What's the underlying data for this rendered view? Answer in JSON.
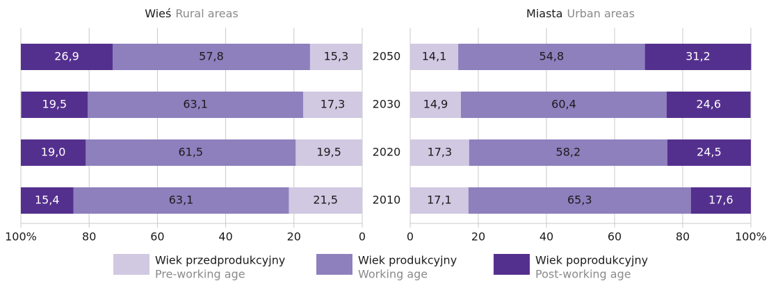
{
  "chart_data": [
    {
      "type": "stacked-bar-horizontal",
      "title": "Wieś",
      "subtitle": "Rural areas",
      "xlim": [
        100,
        0
      ],
      "xticks": [
        {
          "value": 100,
          "label": "100%"
        },
        80,
        60,
        40,
        20,
        0
      ],
      "grid": true,
      "series": [
        {
          "name": "Wiek przedprodukcyjny",
          "name_en": "Pre-working age",
          "color": "#d1c8e2",
          "values": [
            15.3,
            17.3,
            19.5,
            21.5
          ],
          "value_labels": [
            "15,3",
            "17,3",
            "19,5",
            "21,5"
          ]
        },
        {
          "name": "Wiek produkcyjny",
          "name_en": "Working age",
          "color": "#8e7fbd",
          "values": [
            57.8,
            63.1,
            61.5,
            63.1
          ],
          "value_labels": [
            "57,8",
            "63,1",
            "61,5",
            "63,1"
          ]
        },
        {
          "name": "Wiek poprodukcyjny",
          "name_en": "Post-working age",
          "color": "#54308e",
          "values": [
            26.9,
            19.5,
            19.0,
            15.4
          ],
          "value_labels": [
            "26,9",
            "19,5",
            "19,0",
            "15,4"
          ]
        }
      ]
    },
    {
      "type": "stacked-bar-horizontal",
      "title": "Miasta",
      "subtitle": "Urban areas",
      "categories": [
        "2050",
        "2030",
        "2020",
        "2010"
      ],
      "xlim": [
        0,
        100
      ],
      "xticks": [
        0,
        20,
        40,
        60,
        80,
        {
          "value": 100,
          "label": "100%"
        }
      ],
      "grid": true,
      "series": [
        {
          "color": "#d1c8e2",
          "values": [
            14.1,
            14.9,
            17.3,
            17.1
          ],
          "value_labels": [
            "14,1",
            "14,9",
            "17,3",
            "17,1"
          ]
        },
        {
          "color": "#8e7fbd",
          "values": [
            54.8,
            60.4,
            58.2,
            65.3
          ],
          "value_labels": [
            "54,8",
            "60,4",
            "58,2",
            "65,3"
          ]
        },
        {
          "color": "#54308e",
          "values": [
            31.2,
            24.6,
            24.5,
            17.6
          ],
          "value_labels": [
            "31,2",
            "24,6",
            "24,5",
            "17,6"
          ]
        }
      ]
    }
  ]
}
